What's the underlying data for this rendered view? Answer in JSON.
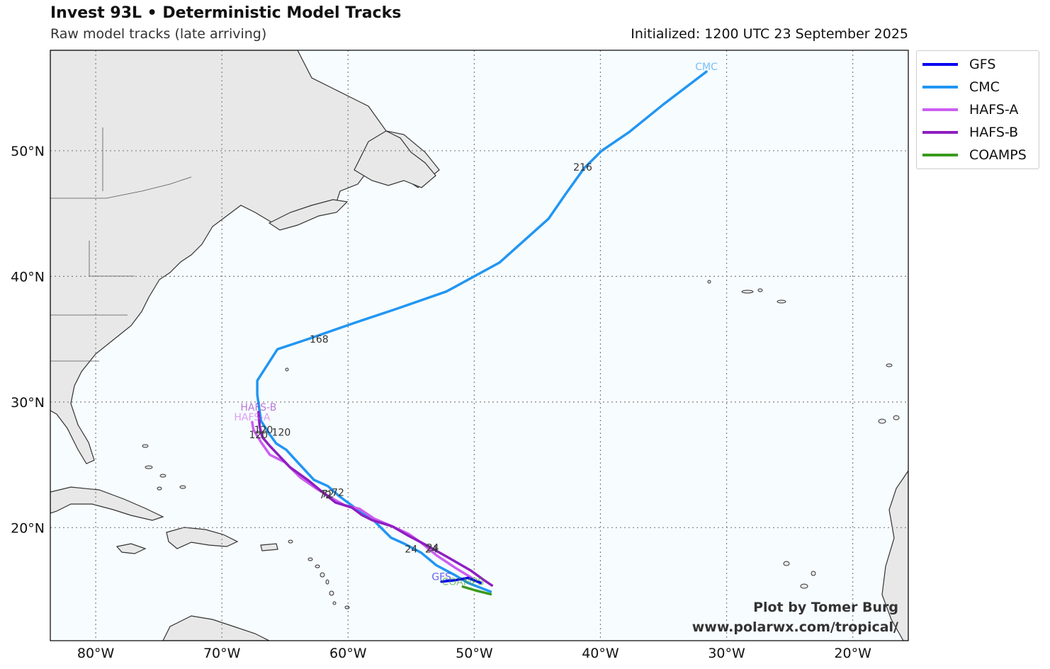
{
  "title": "Invest 93L • Deterministic Model Tracks",
  "subtitle": "Raw model tracks (late arriving)",
  "initialized": "Initialized: 1200 UTC 23 September 2025",
  "credit": {
    "line1": "Plot by Tomer Burg",
    "line2": "www.polarwx.com/tropical/"
  },
  "axes": {
    "lon_range": [
      -83.6,
      -15.6
    ],
    "lat_range": [
      11.0,
      58.0
    ],
    "x_ticks": [
      {
        "lon": -80,
        "label": "80°W"
      },
      {
        "lon": -70,
        "label": "70°W"
      },
      {
        "lon": -60,
        "label": "60°W"
      },
      {
        "lon": -50,
        "label": "50°W"
      },
      {
        "lon": -40,
        "label": "40°W"
      },
      {
        "lon": -30,
        "label": "30°W"
      },
      {
        "lon": -20,
        "label": "20°W"
      }
    ],
    "y_ticks": [
      {
        "lat": 20,
        "label": "20°N"
      },
      {
        "lat": 30,
        "label": "30°N"
      },
      {
        "lat": 40,
        "label": "40°N"
      },
      {
        "lat": 50,
        "label": "50°N"
      }
    ],
    "grid": true,
    "grid_style": "dotted"
  },
  "colors": {
    "land": "#e8e8e8",
    "ocean": "#f7fcfe",
    "coast": "#333333",
    "grid": "#808080"
  },
  "legend": {
    "position": "outside-top-right",
    "items": [
      {
        "name": "GFS",
        "color": "#0000ee"
      },
      {
        "name": "CMC",
        "color": "#2196f3"
      },
      {
        "name": "HAFS-A",
        "color": "#cc5ef0"
      },
      {
        "name": "HAFS-B",
        "color": "#8e1fc0"
      },
      {
        "name": "COAMPS",
        "color": "#3a9a1e"
      }
    ]
  },
  "chart_data": {
    "type": "line",
    "x_axis": "longitude",
    "y_axis": "latitude",
    "series": [
      {
        "name": "CMC",
        "color": "#2196f3",
        "end_label": "CMC",
        "points": [
          {
            "lon": -48.7,
            "lat": 14.9
          },
          {
            "lon": -50.5,
            "lat": 15.6
          },
          {
            "lon": -51.5,
            "lat": 16.2
          },
          {
            "lon": -53.0,
            "lat": 17.0
          },
          {
            "lon": -54.2,
            "lat": 18.0
          },
          {
            "lon": -55.5,
            "lat": 18.7
          },
          {
            "lon": -56.6,
            "lat": 19.2
          },
          {
            "lon": -57.9,
            "lat": 20.5
          },
          {
            "lon": -59.2,
            "lat": 21.4
          },
          {
            "lon": -60.7,
            "lat": 22.5
          },
          {
            "lon": -61.6,
            "lat": 23.3
          },
          {
            "lon": -62.7,
            "lat": 23.8
          },
          {
            "lon": -64.0,
            "lat": 25.2
          },
          {
            "lon": -64.9,
            "lat": 26.2
          },
          {
            "lon": -65.7,
            "lat": 26.7
          },
          {
            "lon": -66.2,
            "lat": 27.4
          },
          {
            "lon": -66.9,
            "lat": 28.5
          },
          {
            "lon": -67.2,
            "lat": 30.6
          },
          {
            "lon": -67.2,
            "lat": 31.7
          },
          {
            "lon": -65.6,
            "lat": 34.2
          },
          {
            "lon": -63.2,
            "lat": 35.0
          },
          {
            "lon": -61.2,
            "lat": 35.7
          },
          {
            "lon": -59.5,
            "lat": 36.3
          },
          {
            "lon": -56.2,
            "lat": 37.4
          },
          {
            "lon": -52.2,
            "lat": 38.8
          },
          {
            "lon": -48.0,
            "lat": 41.1
          },
          {
            "lon": -44.1,
            "lat": 44.6
          },
          {
            "lon": -42.8,
            "lat": 46.5
          },
          {
            "lon": -41.3,
            "lat": 48.6
          },
          {
            "lon": -39.9,
            "lat": 50.0
          },
          {
            "lon": -37.7,
            "lat": 51.5
          },
          {
            "lon": -35.0,
            "lat": 53.7
          },
          {
            "lon": -31.6,
            "lat": 56.3
          }
        ],
        "hour_labels": [
          {
            "text": "24",
            "lon": -55.0,
            "lat": 18.3
          },
          {
            "text": "72",
            "lon": -60.8,
            "lat": 22.8
          },
          {
            "text": "120",
            "lon": -65.3,
            "lat": 27.6
          },
          {
            "text": "168",
            "lon": -62.3,
            "lat": 35.0
          },
          {
            "text": "216",
            "lon": -41.4,
            "lat": 48.7
          }
        ]
      },
      {
        "name": "HAFS-A",
        "color": "#cc5ef0",
        "end_label": "HAFS-A",
        "points": [
          {
            "lon": -50.2,
            "lat": 16.0
          },
          {
            "lon": -51.5,
            "lat": 16.8
          },
          {
            "lon": -53.0,
            "lat": 17.8
          },
          {
            "lon": -54.2,
            "lat": 18.8
          },
          {
            "lon": -55.2,
            "lat": 19.5
          },
          {
            "lon": -56.5,
            "lat": 20.1
          },
          {
            "lon": -57.9,
            "lat": 20.7
          },
          {
            "lon": -59.1,
            "lat": 21.5
          },
          {
            "lon": -60.3,
            "lat": 21.8
          },
          {
            "lon": -61.2,
            "lat": 22.3
          },
          {
            "lon": -62.5,
            "lat": 23.1
          },
          {
            "lon": -63.8,
            "lat": 24.0
          },
          {
            "lon": -65.0,
            "lat": 25.2
          },
          {
            "lon": -66.2,
            "lat": 25.8
          },
          {
            "lon": -66.9,
            "lat": 26.8
          },
          {
            "lon": -67.5,
            "lat": 27.8
          },
          {
            "lon": -67.6,
            "lat": 28.4
          }
        ],
        "hour_labels": [
          {
            "text": "24",
            "lon": -53.4,
            "lat": 18.3
          },
          {
            "text": "72",
            "lon": -61.8,
            "lat": 22.6
          },
          {
            "text": "120",
            "lon": -67.1,
            "lat": 27.4
          }
        ]
      },
      {
        "name": "HAFS-B",
        "color": "#8e1fc0",
        "end_label": "HAFS-B",
        "points": [
          {
            "lon": -48.6,
            "lat": 15.4
          },
          {
            "lon": -49.2,
            "lat": 15.8
          },
          {
            "lon": -50.3,
            "lat": 16.6
          },
          {
            "lon": -52.2,
            "lat": 17.7
          },
          {
            "lon": -53.8,
            "lat": 18.6
          },
          {
            "lon": -55.3,
            "lat": 19.4
          },
          {
            "lon": -56.5,
            "lat": 20.1
          },
          {
            "lon": -58.1,
            "lat": 20.6
          },
          {
            "lon": -58.9,
            "lat": 21.0
          },
          {
            "lon": -59.7,
            "lat": 21.6
          },
          {
            "lon": -61.0,
            "lat": 22.0
          },
          {
            "lon": -62.0,
            "lat": 22.8
          },
          {
            "lon": -63.2,
            "lat": 23.8
          },
          {
            "lon": -64.6,
            "lat": 24.8
          },
          {
            "lon": -66.2,
            "lat": 26.5
          },
          {
            "lon": -66.8,
            "lat": 27.2
          },
          {
            "lon": -67.0,
            "lat": 28.0
          },
          {
            "lon": -67.1,
            "lat": 29.2
          }
        ],
        "hour_labels": [
          {
            "text": "24",
            "lon": -53.3,
            "lat": 18.4
          },
          {
            "text": "72",
            "lon": -61.6,
            "lat": 22.7
          },
          {
            "text": "120",
            "lon": -66.7,
            "lat": 27.8
          }
        ]
      },
      {
        "name": "GFS",
        "color": "#0000ee",
        "end_label": "GFS",
        "points": [
          {
            "lon": -49.5,
            "lat": 15.6
          },
          {
            "lon": -50.5,
            "lat": 16.0
          },
          {
            "lon": -51.6,
            "lat": 15.8
          },
          {
            "lon": -52.6,
            "lat": 15.7
          }
        ],
        "hour_labels": []
      },
      {
        "name": "COAMPS",
        "color": "#3a9a1e",
        "end_label": "COAMPS",
        "points": [
          {
            "lon": -48.7,
            "lat": 14.7
          },
          {
            "lon": -49.9,
            "lat": 15.0
          },
          {
            "lon": -50.9,
            "lat": 15.3
          }
        ],
        "hour_labels": []
      }
    ]
  }
}
